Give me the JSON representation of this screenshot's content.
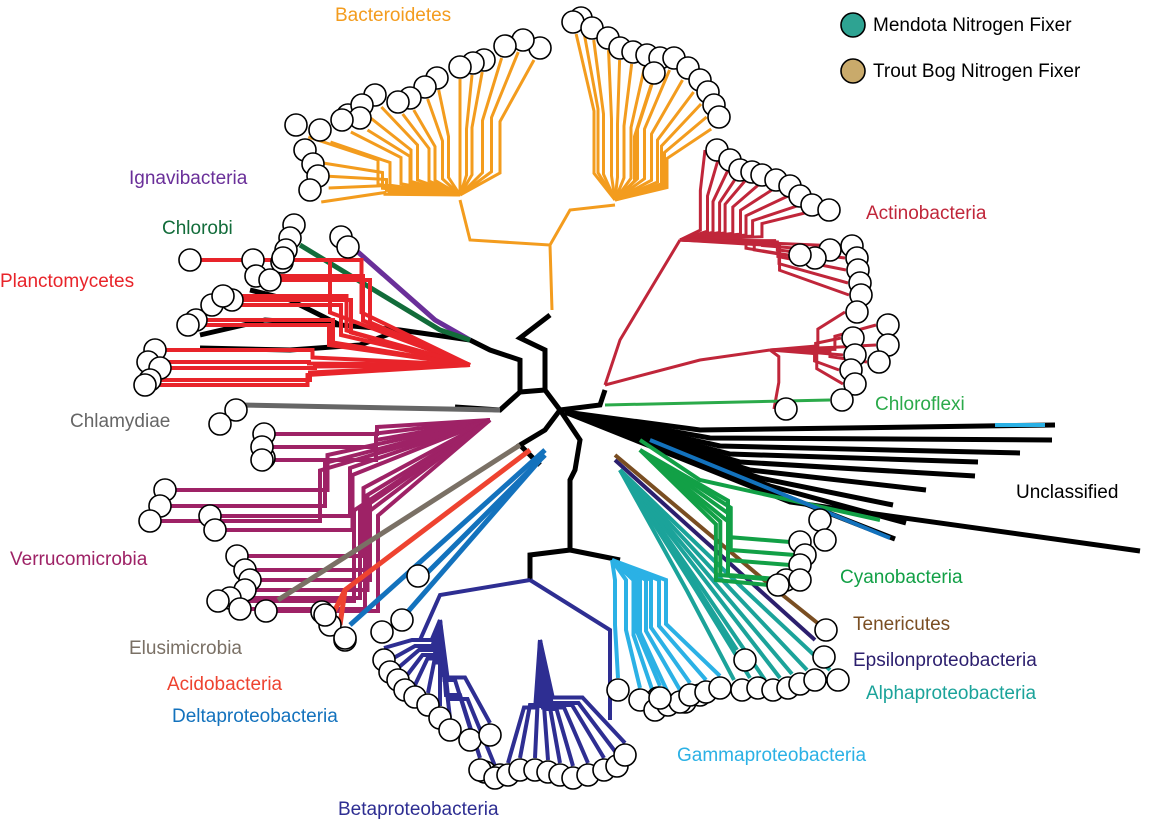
{
  "legend": [
    {
      "label": "Mendota Nitrogen Fixer",
      "color": "#2EA392"
    },
    {
      "label": "Trout Bog Nitrogen Fixer",
      "color": "#C9AA6B"
    }
  ],
  "colors": {
    "leaf_default": "#ffffff",
    "backbone": "#000000"
  },
  "clades": [
    {
      "id": "bacteroidetes",
      "label": "Bacteroidetes",
      "color": "#F39C1E"
    },
    {
      "id": "actinobacteria",
      "label": "Actinobacteria",
      "color": "#C0263A"
    },
    {
      "id": "ignavibacteria",
      "label": "Ignavibacteria",
      "color": "#6A2F99"
    },
    {
      "id": "chlorobi",
      "label": "Chlorobi",
      "color": "#126C3A"
    },
    {
      "id": "planctomycetes",
      "label": "Planctomycetes",
      "color": "#E8242A"
    },
    {
      "id": "chlamydiae",
      "label": "Chlamydiae",
      "color": "#666666"
    },
    {
      "id": "chloroflexi",
      "label": "Chloroflexi",
      "color": "#2BAA4A"
    },
    {
      "id": "unclassified",
      "label": "Unclassified",
      "color": "#000000"
    },
    {
      "id": "verrucomicrobia",
      "label": "Verrucomicrobia",
      "color": "#9E2266"
    },
    {
      "id": "cyanobacteria",
      "label": "Cyanobacteria",
      "color": "#12A046"
    },
    {
      "id": "tenericutes",
      "label": "Tenericutes",
      "color": "#7A4E22"
    },
    {
      "id": "epsilonproteobacteria",
      "label": "Epsilonproteobacteria",
      "color": "#2C1F6E"
    },
    {
      "id": "elusimicrobia",
      "label": "Elusimicrobia",
      "color": "#7A7065"
    },
    {
      "id": "alphaproteobacteria",
      "label": "Alphaproteobacteria",
      "color": "#1BA39A"
    },
    {
      "id": "acidobacteria",
      "label": "Acidobacteria",
      "color": "#EE4330"
    },
    {
      "id": "deltaproteobacteria",
      "label": "Deltaproteobacteria",
      "color": "#1372BD"
    },
    {
      "id": "gammaproteobacteria",
      "label": "Gammaproteobacteria",
      "color": "#2BB1E5"
    },
    {
      "id": "betaproteobacteria",
      "label": "Betaproteobacteria",
      "color": "#2E2E92"
    }
  ]
}
